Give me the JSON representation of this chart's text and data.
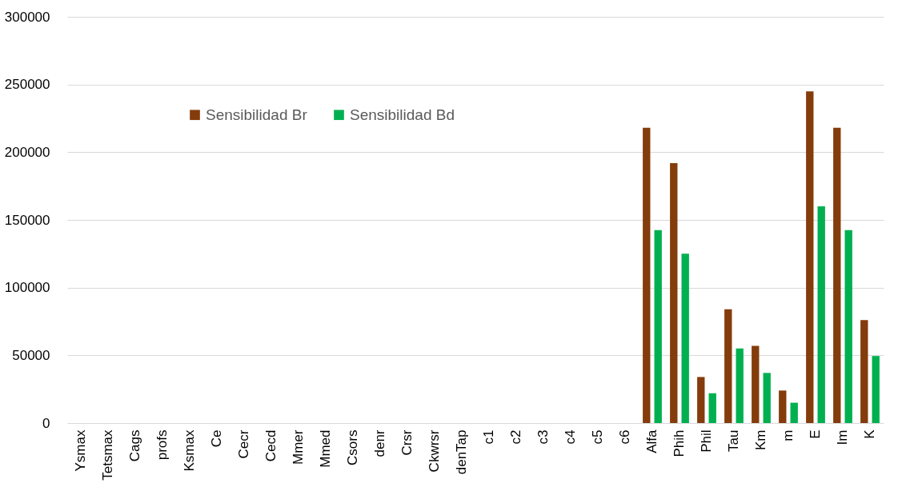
{
  "chart_data": {
    "type": "bar",
    "categories": [
      "Ysmax",
      "Tetsmax",
      "Cags",
      "profs",
      "Ksmax",
      "Ce",
      "Cecr",
      "Cecd",
      "Mmer",
      "Mmed",
      "Csors",
      "denr",
      "Crsr",
      "Ckwrsr",
      "denTap",
      "c1",
      "c2",
      "c3",
      "c4",
      "c5",
      "c6",
      "Alfa",
      "Phih",
      "Phil",
      "Tau",
      "Km",
      "m",
      "E",
      "Im",
      "K"
    ],
    "series": [
      {
        "name": "Sensibilidad Br",
        "color": "#843c0c",
        "values": [
          0,
          0,
          0,
          0,
          0,
          0,
          0,
          0,
          0,
          0,
          0,
          0,
          0,
          0,
          0,
          0,
          0,
          0,
          0,
          0,
          0,
          218000,
          192000,
          34000,
          84000,
          57000,
          24000,
          245000,
          218000,
          76000
        ]
      },
      {
        "name": "Sensibilidad Bd",
        "color": "#00b050",
        "values": [
          0,
          0,
          0,
          0,
          0,
          0,
          0,
          0,
          0,
          0,
          0,
          0,
          0,
          0,
          0,
          0,
          0,
          0,
          0,
          0,
          0,
          142500,
          125000,
          22000,
          55000,
          37000,
          15000,
          160000,
          142500,
          49500
        ]
      }
    ],
    "ylim": [
      0,
      300000
    ],
    "yticks": [
      0,
      50000,
      100000,
      150000,
      200000,
      250000,
      300000
    ],
    "grid": "y",
    "legend": "top"
  }
}
